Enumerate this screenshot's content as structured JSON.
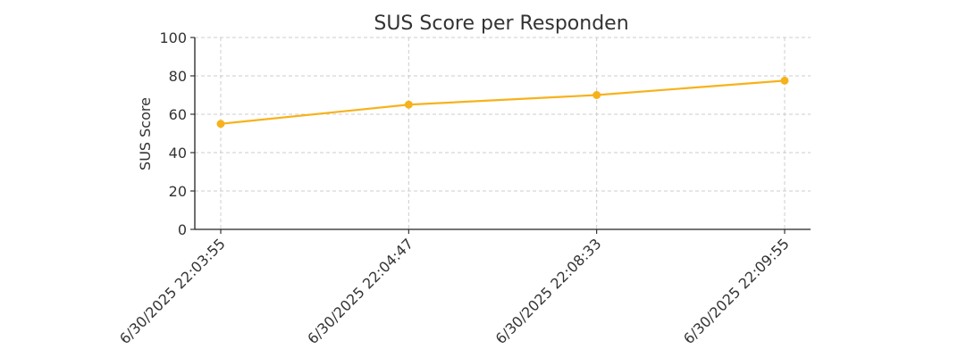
{
  "chart_data": {
    "type": "line",
    "title": "SUS Score per Responden",
    "xlabel": "",
    "ylabel": "SUS Score",
    "categories": [
      "6/30/2025 22:03:55",
      "6/30/2025 22:04:47",
      "6/30/2025 22:08:33",
      "6/30/2025 22:09:55"
    ],
    "series": [
      {
        "values": [
          55,
          65,
          70,
          77.5
        ],
        "color": "#f7b21b"
      }
    ],
    "ylim": [
      0,
      100
    ],
    "yticks": [
      0,
      20,
      40,
      60,
      80,
      100
    ],
    "grid": true,
    "legend": "none"
  }
}
